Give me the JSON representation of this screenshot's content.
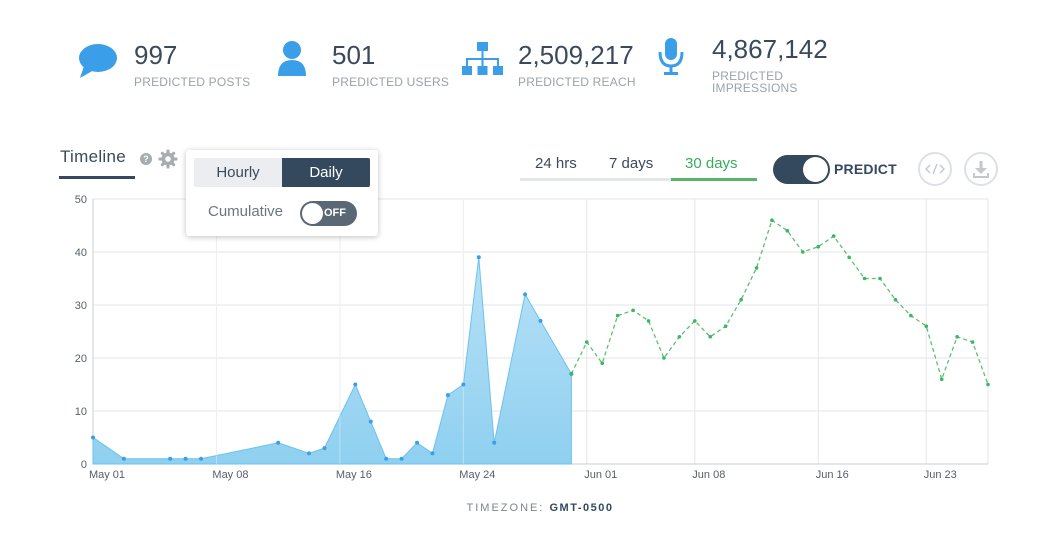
{
  "stats": [
    {
      "value": "997",
      "label": "PREDICTED POSTS",
      "icon": "speech-bubble-icon"
    },
    {
      "value": "501",
      "label": "PREDICTED USERS",
      "icon": "user-icon"
    },
    {
      "value": "2,509,217",
      "label": "PREDICTED REACH",
      "icon": "network-icon"
    },
    {
      "value": "4,867,142",
      "label": "PREDICTED IMPRESSIONS",
      "icon": "microphone-icon"
    }
  ],
  "colors": {
    "accent": "#3a9ee8",
    "dark": "#34495e",
    "predict": "#5bbf74",
    "area": "#8fd0f0"
  },
  "timeline": {
    "tab_label": "Timeline",
    "help_glyph": "?",
    "popover": {
      "hourly_label": "Hourly",
      "daily_label": "Daily",
      "selected": "Daily",
      "cumulative_label": "Cumulative",
      "cumulative_state": "OFF"
    }
  },
  "range_tabs": {
    "items": [
      "24 hrs",
      "7 days",
      "30 days"
    ],
    "selected": "30 days"
  },
  "predict": {
    "label": "PREDICT",
    "on": true
  },
  "timezone": {
    "prefix": "TIMEZONE:",
    "value": "GMT-0500"
  },
  "chart_data": {
    "type": "area",
    "ylim": [
      0,
      50
    ],
    "yticks": [
      0,
      10,
      20,
      30,
      40,
      50
    ],
    "xlim_days": [
      0,
      58
    ],
    "xticks": [
      {
        "day": 0,
        "label": "May 01"
      },
      {
        "day": 8,
        "label": "May 08"
      },
      {
        "day": 16,
        "label": "May 16"
      },
      {
        "day": 24,
        "label": "May 24"
      },
      {
        "day": 32,
        "label": "Jun 01"
      },
      {
        "day": 39,
        "label": "Jun 08"
      },
      {
        "day": 47,
        "label": "Jun 16"
      },
      {
        "day": 54,
        "label": "Jun 23"
      }
    ],
    "series": [
      {
        "kind": "actual",
        "points": [
          [
            0,
            5
          ],
          [
            2,
            1
          ],
          [
            5,
            1
          ],
          [
            6,
            1
          ],
          [
            7,
            1
          ],
          [
            12,
            4
          ],
          [
            14,
            2
          ],
          [
            15,
            3
          ],
          [
            17,
            15
          ],
          [
            18,
            8
          ],
          [
            19,
            1
          ],
          [
            20,
            1
          ],
          [
            21,
            4
          ],
          [
            22,
            2
          ],
          [
            23,
            13
          ],
          [
            24,
            15
          ],
          [
            25,
            39
          ],
          [
            26,
            4
          ],
          [
            28,
            32
          ],
          [
            29,
            27
          ],
          [
            31,
            17
          ]
        ]
      },
      {
        "kind": "predicted",
        "points": [
          [
            31,
            17
          ],
          [
            32,
            23
          ],
          [
            33,
            19
          ],
          [
            34,
            28
          ],
          [
            35,
            29
          ],
          [
            36,
            27
          ],
          [
            37,
            20
          ],
          [
            38,
            24
          ],
          [
            39,
            27
          ],
          [
            40,
            24
          ],
          [
            41,
            26
          ],
          [
            42,
            31
          ],
          [
            43,
            37
          ],
          [
            44,
            46
          ],
          [
            45,
            44
          ],
          [
            46,
            40
          ],
          [
            47,
            41
          ],
          [
            48,
            43
          ],
          [
            49,
            39
          ],
          [
            50,
            35
          ],
          [
            51,
            35
          ],
          [
            52,
            31
          ],
          [
            53,
            28
          ],
          [
            54,
            26
          ],
          [
            55,
            16
          ],
          [
            56,
            24
          ],
          [
            57,
            23
          ],
          [
            58,
            15
          ]
        ]
      }
    ]
  }
}
